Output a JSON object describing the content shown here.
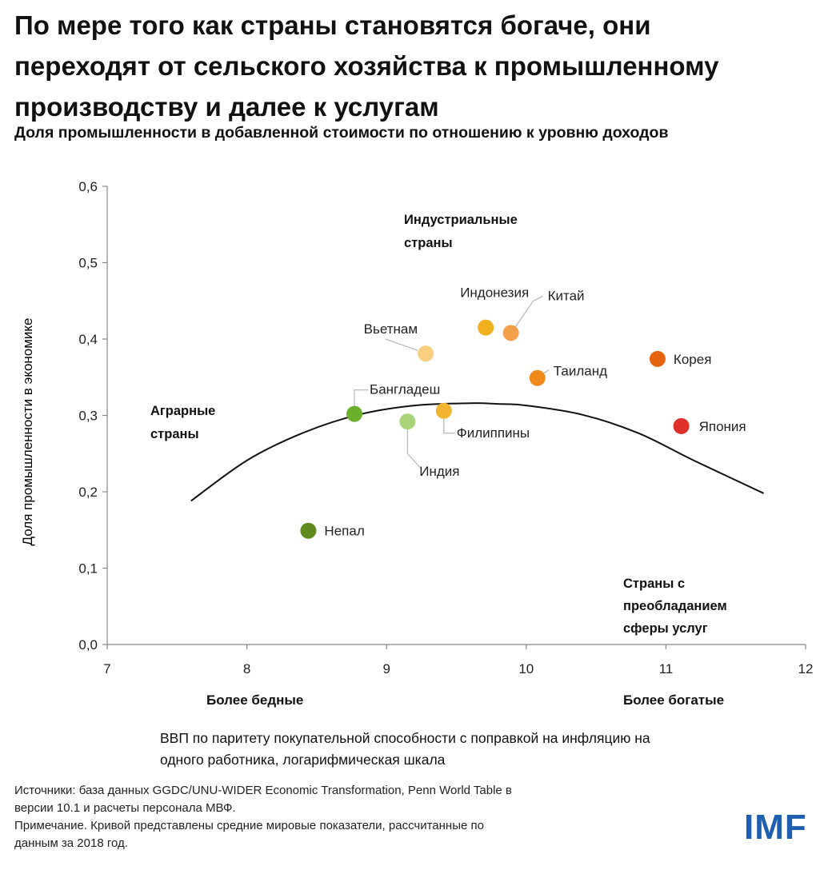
{
  "title_lines": [
    "По мере того как страны становятся богаче, они",
    "переходят от сельского хозяйства к промышленному",
    "производству и далее к услугам"
  ],
  "subtitle": "Доля промышленности в добавленной стоимости по отношению к уровню доходов",
  "chart_data": {
    "type": "scatter",
    "title": "Доля промышленности в добавленной стоимости по отношению к уровню доходов",
    "ylabel": "Доля промышленности в экономике",
    "xlabel": "ВВП по паритету покупательной способности с поправкой на инфляцию на одного работника, логарифмическая шкала",
    "xlim": [
      7,
      12
    ],
    "ylim": [
      0,
      0.6
    ],
    "x_ticks": [
      "7",
      "8",
      "9",
      "10",
      "11",
      "12"
    ],
    "y_ticks": [
      "0,0",
      "0,1",
      "0,2",
      "0,3",
      "0,4",
      "0,5",
      "0,6"
    ],
    "points": [
      {
        "name": "Непал",
        "x": 8.44,
        "y": 0.149,
        "color": "#5e8a1e"
      },
      {
        "name": "Бангладеш",
        "x": 8.77,
        "y": 0.302,
        "color": "#6ab02c"
      },
      {
        "name": "Индия",
        "x": 9.15,
        "y": 0.292,
        "color": "#a9d47c"
      },
      {
        "name": "Филиппины",
        "x": 9.41,
        "y": 0.306,
        "color": "#f2b533"
      },
      {
        "name": "Вьетнам",
        "x": 9.28,
        "y": 0.381,
        "color": "#f7cf7e"
      },
      {
        "name": "Индонезия",
        "x": 9.71,
        "y": 0.415,
        "color": "#f0b020"
      },
      {
        "name": "Китай",
        "x": 9.89,
        "y": 0.408,
        "color": "#f4a04a"
      },
      {
        "name": "Таиланд",
        "x": 10.08,
        "y": 0.349,
        "color": "#f08a1c"
      },
      {
        "name": "Корея",
        "x": 10.94,
        "y": 0.374,
        "color": "#e6640f"
      },
      {
        "name": "Япония",
        "x": 11.11,
        "y": 0.286,
        "color": "#dc3028"
      }
    ],
    "curve": {
      "name": "Средние мировые показатели",
      "x": [
        7.6,
        8.0,
        8.4,
        8.8,
        9.2,
        9.6,
        9.8,
        10.0,
        10.4,
        10.8,
        11.2,
        11.7
      ],
      "y": [
        0.188,
        0.241,
        0.277,
        0.301,
        0.313,
        0.316,
        0.315,
        0.313,
        0.301,
        0.277,
        0.241,
        0.198
      ]
    },
    "annotations": {
      "industrial": [
        "Индустриальные",
        "страны"
      ],
      "agrarian": [
        "Аграрные",
        "страны"
      ],
      "services": [
        "Страны с",
        "преобладанием",
        "сферы услуг"
      ],
      "poorer": "Более бедные",
      "richer": "Более богатые"
    }
  },
  "xlabel_lines": [
    "ВВП по паритету покупательной способности с поправкой на инфляцию на",
    "одного работника, логарифмическая шкала"
  ],
  "source_lines": [
    "Источники: база данных GGDC/UNU-WIDER Economic Transformation, Penn World Table в",
    "версии 10.1 и расчеты персонала МВФ.",
    "Примечание. Кривой представлены средние мировые показатели, рассчитанные по",
    "данным за 2018 год."
  ],
  "logo": "IMF"
}
